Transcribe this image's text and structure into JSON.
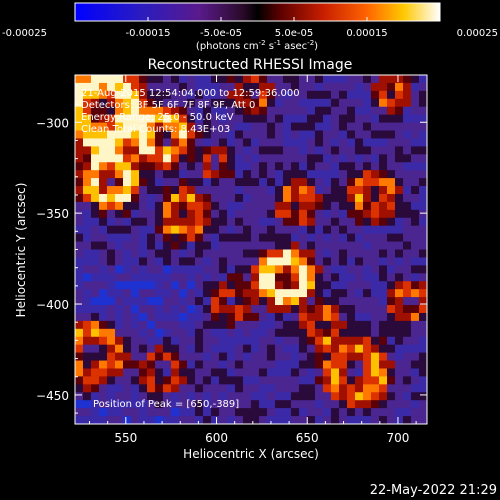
{
  "colorbar": {
    "ticks": [
      {
        "value": -0.00025,
        "label": "-0.00025"
      },
      {
        "value": -0.00015,
        "label": "-0.00015"
      },
      {
        "value": -5e-05,
        "label": "-5.0e-05"
      },
      {
        "value": 5e-05,
        "label": "5.0e-05"
      },
      {
        "value": 0.00015,
        "label": "0.00015"
      },
      {
        "value": 0.00025,
        "label": "0.00025"
      }
    ],
    "range": [
      -0.00025,
      0.00025
    ],
    "units_base": "(photons cm",
    "units_exp1": "-2",
    "units_mid1": " s",
    "units_exp2": "-1",
    "units_mid2": " asec",
    "units_exp3": "-2",
    "units_end": ")"
  },
  "chart_data": {
    "type": "heatmap",
    "title": "Reconstructed RHESSI Image",
    "xlabel": "Heliocentric X (arcsec)",
    "ylabel": "Heliocentric Y (arcsec)",
    "xlim": [
      522,
      716
    ],
    "ylim": [
      -466,
      -274
    ],
    "xticks": [
      {
        "value": 550,
        "label": "550"
      },
      {
        "value": 600,
        "label": "600"
      },
      {
        "value": 650,
        "label": "650"
      },
      {
        "value": 700,
        "label": "700"
      }
    ],
    "yticks": [
      {
        "value": -300,
        "label": "−300"
      },
      {
        "value": -350,
        "label": "−350"
      },
      {
        "value": -400,
        "label": "−400"
      },
      {
        "value": -450,
        "label": "−450"
      }
    ],
    "grid": false,
    "annotations": {
      "time_range": "21-Aug-2015 12:54:04.000 to 12:59:36.000",
      "detectors": "Detectors: 3F 5F 6F 7F 8F 9F, Att 0",
      "energy": "Energy Range: 25.0 - 50.0 keV",
      "clean": "Clean      Total Counts: 8.43E+03",
      "peak": "Position of Peak = [650,-389]"
    },
    "peak": [
      650,
      -389
    ]
  },
  "footer": {
    "timestamp": "22-May-2022 21:29"
  }
}
